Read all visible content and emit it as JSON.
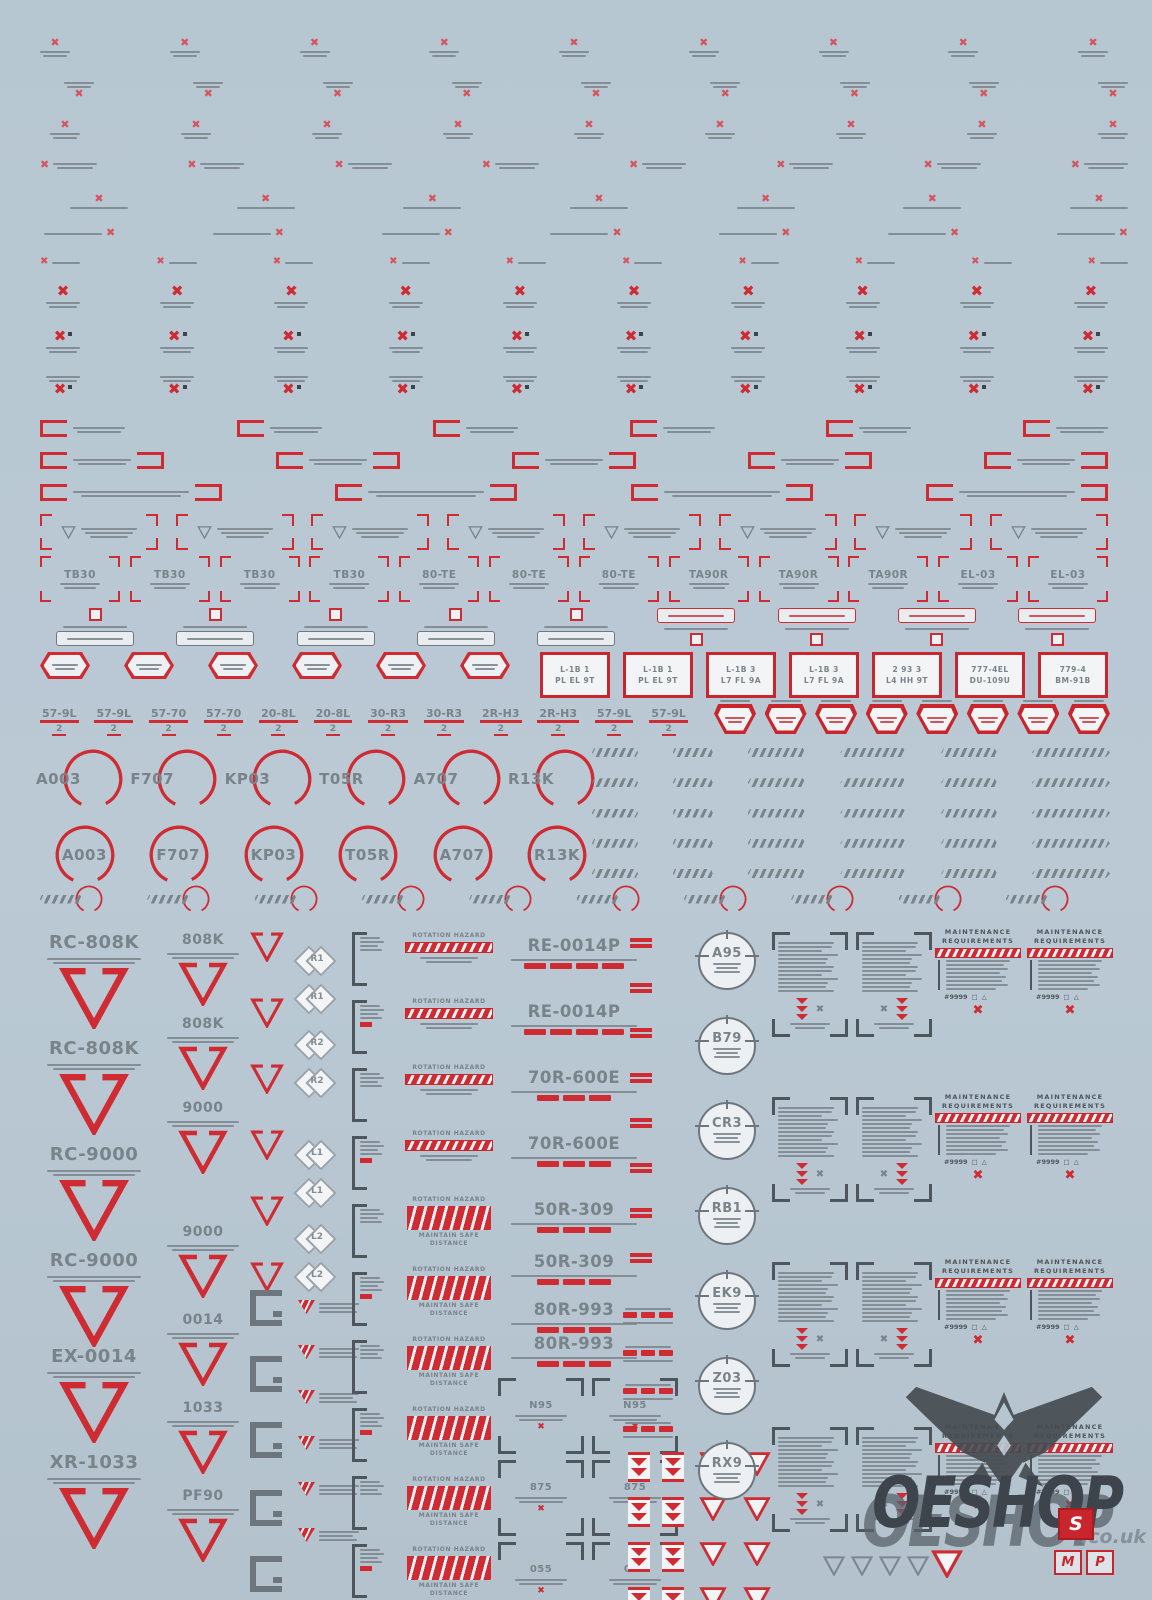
{
  "sheet": {
    "background": "#b8c7d2",
    "red": "#cf2b33",
    "red_soft": "#d4555e",
    "gray": "#79838a",
    "gray_dark": "#4d565c",
    "description_codes_visible_only": true
  },
  "icons": {
    "x": "✖",
    "triangle_outline": "△",
    "square_outline": "□"
  },
  "frame_codes": [
    "TB30",
    "TB30",
    "TB30",
    "TB30",
    "80-TE",
    "80-TE",
    "80-TE",
    "TA90R",
    "TA90R",
    "TA90R",
    "EL-03",
    "EL-03"
  ],
  "underline_codes": [
    {
      "code": "57-9L",
      "qty": "2"
    },
    {
      "code": "57-9L",
      "qty": "2"
    },
    {
      "code": "57-70",
      "qty": "2"
    },
    {
      "code": "57-70",
      "qty": "2"
    },
    {
      "code": "20-8L",
      "qty": "2"
    },
    {
      "code": "20-8L",
      "qty": "2"
    },
    {
      "code": "30-R3",
      "qty": "2"
    },
    {
      "code": "30-R3",
      "qty": "2"
    },
    {
      "code": "2R-H3",
      "qty": "2"
    },
    {
      "code": "2R-H3",
      "qty": "2"
    },
    {
      "code": "57-9L",
      "qty": "2"
    },
    {
      "code": "57-9L",
      "qty": "2"
    }
  ],
  "box_codes": [
    {
      "l1": "L-1B 1",
      "l2": "PL EL 9T"
    },
    {
      "l1": "L-1B 1",
      "l2": "PL EL 9T"
    },
    {
      "l1": "L-1B 3",
      "l2": "L7 FL 9A"
    },
    {
      "l1": "L-1B 3",
      "l2": "L7 FL 9A"
    },
    {
      "l1": "2 93 3",
      "l2": "L4 HH 9T"
    },
    {
      "l1": "777-4EL",
      "l2": "DU-109U"
    },
    {
      "l1": "779-4",
      "l2": "BM-91B"
    }
  ],
  "ring_codes": [
    "A003",
    "F707",
    "KP03",
    "T05R",
    "A707",
    "R13K"
  ],
  "left_codes": [
    "RC-808K",
    "RC-808K",
    "RC-9000",
    "RC-9000",
    "EX-0014",
    "XR-1033"
  ],
  "col2_codes": [
    "808K",
    "808K",
    "9000",
    "9000",
    "0014",
    "1033",
    "PF90"
  ],
  "diamond_codes": [
    "R1",
    "R1",
    "R2",
    "R2",
    "L1",
    "L1",
    "L2",
    "L2"
  ],
  "rotation": {
    "title": "ROTATION HAZARD",
    "subtitle": "MAINTAIN SAFE DISTANCE"
  },
  "big_codes": [
    "RE-0014P",
    "RE-0014P",
    "70R-600E",
    "70R-600E",
    "50R-309",
    "50R-309",
    "80R-993",
    "80R-993"
  ],
  "bracket_codes": [
    "N95",
    "875",
    "055"
  ],
  "small_circle_codes": [
    "A95",
    "B79",
    "CR3",
    "RB1",
    "EK9",
    "Z03",
    "RX9"
  ],
  "maintenance": {
    "title_l1": "MAINTENANCE",
    "title_l2": "REQUIREMENTS",
    "ref": "#9999"
  },
  "watermark": {
    "name": "OESHOP",
    "domain": ".co.uk",
    "badge_s": "S",
    "badge_m": "M",
    "badge_p": "P"
  }
}
